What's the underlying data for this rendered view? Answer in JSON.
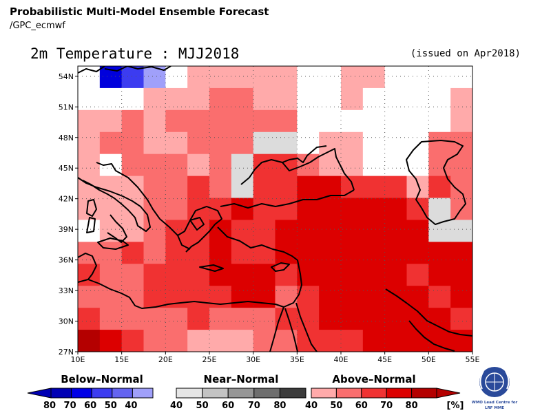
{
  "header": {
    "title": "Probabilistic Multi-Model Ensemble Forecast",
    "subtitle": "/GPC_ecmwf"
  },
  "map": {
    "title": "2m Temperature : MJJ2018",
    "issued": "(issued on Apr2018)",
    "lon_ticks": [
      "10E",
      "15E",
      "20E",
      "25E",
      "30E",
      "35E",
      "40E",
      "45E",
      "50E",
      "55E"
    ],
    "lat_ticks": [
      "27N",
      "30N",
      "33N",
      "36N",
      "39N",
      "42N",
      "45N",
      "48N",
      "51N",
      "54N"
    ],
    "extent": {
      "lon_min": 10,
      "lon_max": 55,
      "lat_min": 27,
      "lat_max": 55
    }
  },
  "legend": {
    "below": {
      "title": "Below–Normal",
      "labels": [
        "80",
        "70",
        "60",
        "50",
        "40"
      ],
      "colors": [
        "#0000b4",
        "#0000e6",
        "#3c3cf0",
        "#6464f0",
        "#a0a0fa"
      ]
    },
    "near": {
      "title": "Near–Normal",
      "labels": [
        "40",
        "50",
        "60",
        "70",
        "80"
      ],
      "colors": [
        "#e6e6e6",
        "#c3c3c3",
        "#969696",
        "#6e6e6e",
        "#3c3c3c"
      ]
    },
    "above": {
      "title": "Above–Normal",
      "labels": [
        "40",
        "50",
        "60",
        "70",
        "80"
      ],
      "colors": [
        "#ffaaaa",
        "#fa6e6e",
        "#f03232",
        "#dc0000",
        "#b40000"
      ]
    },
    "unit": "[%]"
  },
  "logo": {
    "line1": "WMO Lead Centre for",
    "line2": "LRF MME"
  },
  "colors": {
    "A4": "#ffaaaa",
    "A5": "#fa6e6e",
    "A6": "#f03232",
    "A7": "#dc0000",
    "A8": "#b40000",
    "N4": "#dcdcdc",
    "B4": "#a0a0fa",
    "B6": "#3c3cf0",
    "B7": "#0000dc"
  }
}
